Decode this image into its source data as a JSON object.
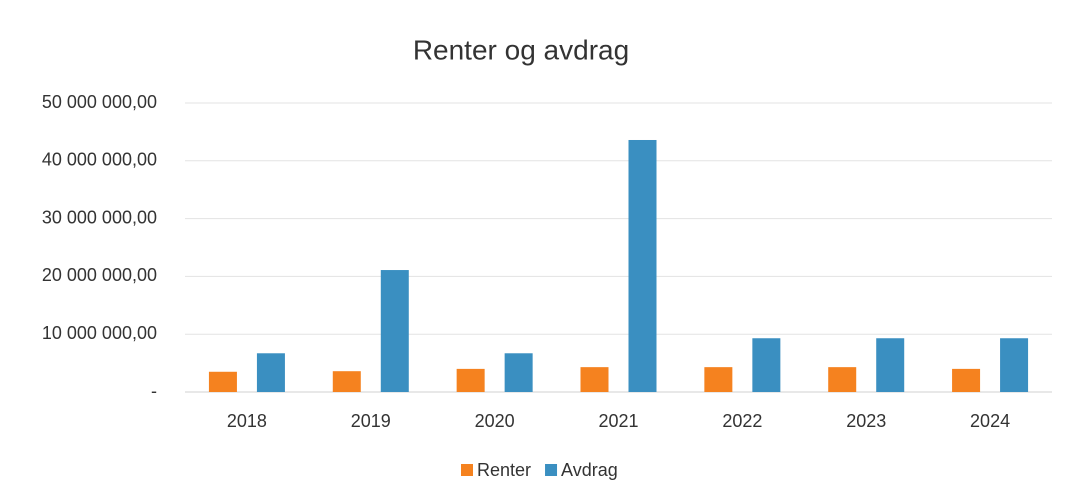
{
  "chart_data": {
    "type": "bar",
    "title": "Renter og avdrag",
    "categories": [
      "2018",
      "2019",
      "2020",
      "2021",
      "2022",
      "2023",
      "2024"
    ],
    "series": [
      {
        "name": "Renter",
        "color": "#f5821f",
        "values": [
          3500000,
          3600000,
          4000000,
          4300000,
          4300000,
          4300000,
          4000000
        ]
      },
      {
        "name": "Avdrag",
        "color": "#3a8fc1",
        "values": [
          6700000,
          21100000,
          6700000,
          43600000,
          9300000,
          9300000,
          9300000
        ]
      }
    ],
    "ylim": [
      0,
      50000000
    ],
    "yticks": [
      {
        "value": 0,
        "label": "-"
      },
      {
        "value": 10000000,
        "label": "10 000 000,00"
      },
      {
        "value": 20000000,
        "label": "20 000 000,00"
      },
      {
        "value": 30000000,
        "label": "30 000 000,00"
      },
      {
        "value": 40000000,
        "label": "40 000 000,00"
      },
      {
        "value": 50000000,
        "label": "50 000 000,00"
      }
    ],
    "grid": true,
    "legend": "bottom"
  }
}
